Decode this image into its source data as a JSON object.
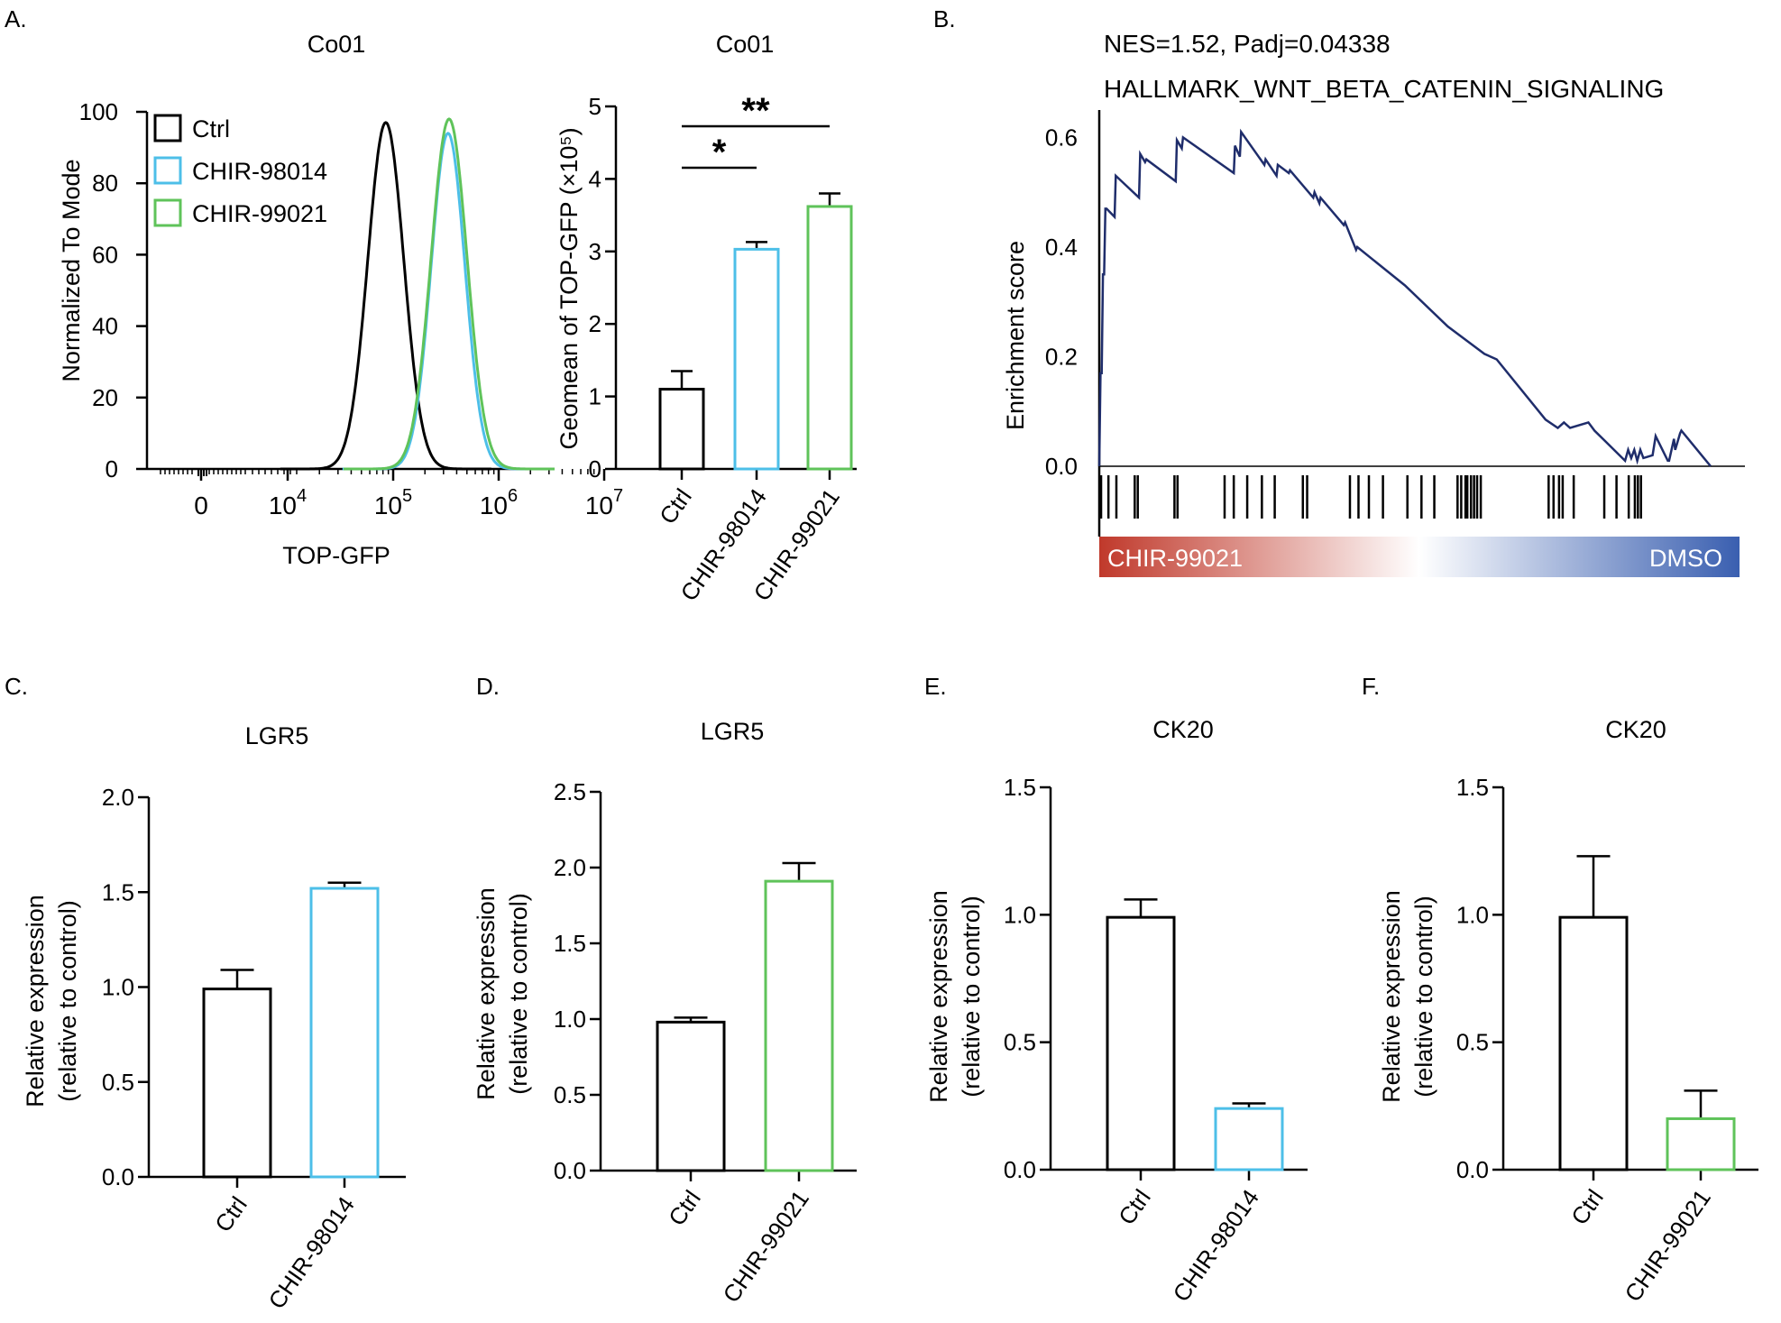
{
  "colors": {
    "ctrl": "#000000",
    "chir98014": "#4dbfe8",
    "chir99021": "#5fc35a",
    "es_line": "#1f2d6b",
    "bar_red": "#c0392b",
    "bar_blue": "#3a5fb0"
  },
  "panel_labels": {
    "a": "A.",
    "b": "B.",
    "c": "C.",
    "d": "D.",
    "e": "E.",
    "f": "F."
  },
  "chart_data": [
    {
      "id": "histogram",
      "type": "line",
      "title": "Co01",
      "xlabel": "TOP-GFP",
      "ylabel": "Normalized To Mode",
      "xscale": "biexponential",
      "xticks": [
        "0",
        "10",
        "10",
        "10",
        "10"
      ],
      "xtick_exponents": [
        "",
        "4",
        "5",
        "6",
        "7"
      ],
      "ylim": [
        0,
        100
      ],
      "yticks": [
        "0",
        "20",
        "40",
        "60",
        "80",
        "100"
      ],
      "legend": [
        "Ctrl",
        "CHIR-98014",
        "CHIR-99021"
      ],
      "legend_position": "top-left",
      "series": [
        {
          "name": "Ctrl",
          "mode_log10": 4.93,
          "width_log10": 0.17,
          "peak": 97
        },
        {
          "name": "CHIR-98014",
          "mode_log10": 5.52,
          "width_log10": 0.16,
          "peak": 94
        },
        {
          "name": "CHIR-99021",
          "mode_log10": 5.53,
          "width_log10": 0.17,
          "peak": 98
        }
      ]
    },
    {
      "id": "geomean",
      "type": "bar",
      "title": "Co01",
      "ylabel": "Geomean of TOP-GFP (×10⁵)",
      "ylim": [
        0,
        5
      ],
      "yticks": [
        "0",
        "1",
        "2",
        "3",
        "4",
        "5"
      ],
      "categories": [
        "Ctrl",
        "CHIR-98014",
        "CHIR-99021"
      ],
      "values": [
        1.1,
        3.03,
        3.62
      ],
      "errors": [
        0.25,
        0.1,
        0.18
      ],
      "significance": [
        {
          "from": 0,
          "to": 1,
          "label": "*"
        },
        {
          "from": 0,
          "to": 2,
          "label": "**"
        }
      ]
    },
    {
      "id": "gsea",
      "type": "line",
      "title": "NES=1.52, Padj=0.04338",
      "subtitle": "HALLMARK_WNT_BETA_CATENIN_SIGNALING",
      "ylabel": "Enrichment score",
      "yticks": [
        "0.0",
        "0.2",
        "0.4",
        "0.6"
      ],
      "ylim": [
        0,
        0.65
      ],
      "xlim": [
        0,
        100
      ],
      "x": [
        0,
        0.2,
        0.4,
        0.6,
        0.8,
        1.0,
        1.2,
        2.5,
        2.7,
        6.5,
        6.7,
        7.5,
        7.7,
        12.5,
        12.7,
        13.5,
        13.7,
        22,
        22.2,
        23,
        23.2,
        27,
        27.2,
        29,
        29.2,
        31,
        31.2,
        35,
        35.2,
        36,
        36.2,
        40,
        40.2,
        42,
        42.2,
        50,
        57,
        63,
        65,
        73,
        75,
        76,
        77,
        80,
        81,
        86,
        86.5,
        87,
        87.5,
        88,
        88.5,
        89,
        90.5,
        91,
        93,
        93.2,
        94,
        94.2,
        95,
        95.2,
        100
      ],
      "y": [
        0.0,
        0.17,
        0.17,
        0.35,
        0.35,
        0.47,
        0.47,
        0.455,
        0.53,
        0.49,
        0.57,
        0.555,
        0.56,
        0.52,
        0.595,
        0.58,
        0.6,
        0.535,
        0.585,
        0.565,
        0.61,
        0.55,
        0.56,
        0.53,
        0.55,
        0.535,
        0.54,
        0.49,
        0.5,
        0.48,
        0.49,
        0.44,
        0.445,
        0.395,
        0.4,
        0.33,
        0.255,
        0.205,
        0.195,
        0.085,
        0.07,
        0.08,
        0.07,
        0.08,
        0.065,
        0.01,
        0.03,
        0.015,
        0.03,
        0.01,
        0.03,
        0.015,
        0.02,
        0.055,
        0.01,
        0.01,
        0.05,
        0.03,
        0.06,
        0.065,
        0.0
      ],
      "hits": [
        0.3,
        1.5,
        2.8,
        5.8,
        6.3,
        12.3,
        12.8,
        20.5,
        22.0,
        24.2,
        26.6,
        28.7,
        33.3,
        34.0,
        41.0,
        42.4,
        44.1,
        46.4,
        50.4,
        52.7,
        54.8,
        58.6,
        59.2,
        59.9,
        60.2,
        60.8,
        61.3,
        61.8,
        62.4,
        73.5,
        74.3,
        75.2,
        75.8,
        77.6,
        82.6,
        84.6,
        86.6,
        87.6,
        88.1,
        88.6
      ],
      "gradient_labels": {
        "left": "CHIR-99021",
        "right": "DMSO"
      }
    },
    {
      "id": "c",
      "type": "bar",
      "title": "LGR5",
      "ylabel": "Relative expression",
      "ylabel2": "(relative to control)",
      "ylim": [
        0,
        2.0
      ],
      "yticks": [
        "0.0",
        "0.5",
        "1.0",
        "1.5",
        "2.0"
      ],
      "categories": [
        "Ctrl",
        "CHIR-98014"
      ],
      "values": [
        0.99,
        1.52
      ],
      "errors": [
        0.1,
        0.03
      ]
    },
    {
      "id": "d",
      "type": "bar",
      "title": "LGR5",
      "ylabel": "Relative expression",
      "ylabel2": "(relative to control)",
      "ylim": [
        0,
        2.5
      ],
      "yticks": [
        "0.0",
        "0.5",
        "1.0",
        "1.5",
        "2.0",
        "2.5"
      ],
      "categories": [
        "Ctrl",
        "CHIR-99021"
      ],
      "values": [
        0.98,
        1.91
      ],
      "errors": [
        0.03,
        0.12
      ]
    },
    {
      "id": "e",
      "type": "bar",
      "title": "CK20",
      "ylabel": "Relative expression",
      "ylabel2": "(relative to control)",
      "ylim": [
        0,
        1.5
      ],
      "yticks": [
        "0.0",
        "0.5",
        "1.0",
        "1.5"
      ],
      "categories": [
        "Ctrl",
        "CHIR-98014"
      ],
      "values": [
        0.99,
        0.24
      ],
      "errors": [
        0.07,
        0.02
      ]
    },
    {
      "id": "f",
      "type": "bar",
      "title": "CK20",
      "ylabel": "Relative expression",
      "ylabel2": "(relative to control)",
      "ylim": [
        0,
        1.5
      ],
      "yticks": [
        "0.0",
        "0.5",
        "1.0",
        "1.5"
      ],
      "categories": [
        "Ctrl",
        "CHIR-99021"
      ],
      "values": [
        0.99,
        0.2
      ],
      "errors": [
        0.24,
        0.11
      ]
    }
  ]
}
